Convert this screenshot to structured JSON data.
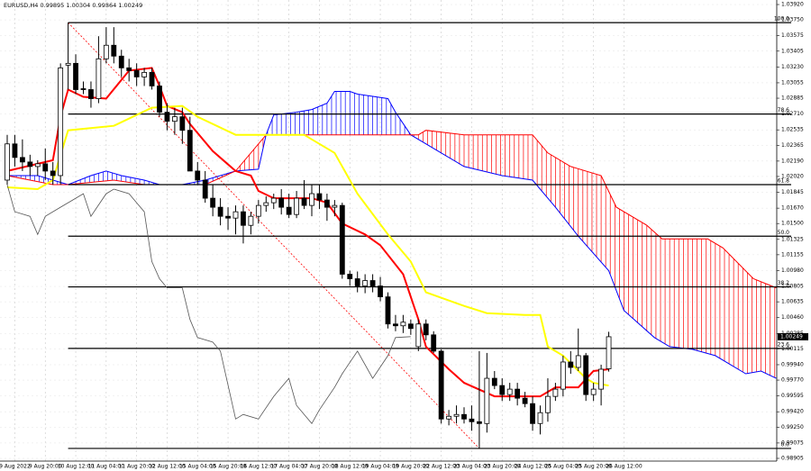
{
  "chart_data": {
    "type": "candlestick",
    "symbol": "EURUSD,H4",
    "ylim": [
      0.98875,
      1.0397
    ],
    "yticks": [
      {
        "value": 1.0392,
        "label": "1.03920"
      },
      {
        "value": 1.0375,
        "label": "1.03750"
      },
      1.03575,
      1.03405,
      {
        "value": 1.0323,
        "label": "1.03230"
      },
      1.03055,
      1.02885,
      {
        "value": 1.0271,
        "label": "1.02710"
      },
      1.02535,
      1.02365,
      {
        "value": 1.0219,
        "label": "1.02190"
      },
      {
        "value": 1.0202,
        "label": "1.02020"
      },
      1.01845,
      {
        "value": 1.0167,
        "label": "1.01670"
      },
      {
        "value": 1.015,
        "label": "1.01500"
      },
      1.01325,
      1.01155,
      {
        "value": 1.0098,
        "label": "1.00980"
      },
      1.00805,
      1.00635,
      {
        "value": 1.0046,
        "label": "1.00460"
      },
      1.00285,
      1.00115,
      {
        "value": 0.9994,
        "label": "0.99940"
      },
      {
        "value": 0.9977,
        "label": "0.99770"
      },
      0.99595,
      {
        "value": 0.9942,
        "label": "0.99420"
      },
      {
        "value": 0.9925,
        "label": "0.99250"
      },
      0.99075,
      0.98905
    ],
    "grid": true,
    "categories": [
      null,
      "9 Aug 2022",
      null,
      null,
      null,
      "9 Aug 20:00",
      null,
      null,
      null,
      "10 Aug 12:00",
      null,
      null,
      null,
      "11 Aug 04:00",
      null,
      null,
      null,
      "11 Aug 20:00",
      null,
      null,
      null,
      "12 Aug 12:00",
      null,
      null,
      null,
      "15 Aug 04:00",
      null,
      null,
      null,
      "15 Aug 20:00",
      null,
      null,
      null,
      "16 Aug 12:00",
      null,
      null,
      null,
      "17 Aug 04:00",
      null,
      null,
      null,
      "17 Aug 20:00",
      null,
      null,
      null,
      "18 Aug 12:00",
      null,
      null,
      null,
      "19 Aug 04:00",
      null,
      null,
      null,
      "19 Aug 20:00",
      null,
      null,
      null,
      "22 Aug 12:00",
      null,
      null,
      null,
      "23 Aug 04:00",
      null,
      null,
      null,
      "23 Aug 20:00",
      null,
      null,
      null,
      "24 Aug 12:00",
      null,
      null,
      null,
      "25 Aug 04:00",
      null,
      null,
      null,
      "25 Aug 20:00",
      null,
      null,
      null,
      "26 Aug 12:00"
    ],
    "open": [
      1.0198,
      1.0238,
      1.0223,
      1.0218,
      1.0213,
      1.0216,
      1.0208,
      1.0203,
      1.0325,
      1.0327,
      1.0299,
      1.0298,
      1.0288,
      1.0332,
      1.0347,
      1.0335,
      1.0322,
      1.0319,
      1.0312,
      1.0317,
      1.0302,
      1.0273,
      1.0263,
      1.0268,
      1.0253,
      1.0208,
      1.0198,
      1.0178,
      1.0168,
      1.0158,
      1.0156,
      1.0163,
      1.0148,
      1.0158,
      1.017,
      1.0173,
      1.0178,
      1.0168,
      1.016,
      1.0178,
      1.017,
      1.0183,
      1.0176,
      1.0168,
      1.017,
      1.0094,
      1.0089,
      1.0081,
      1.0087,
      1.0081,
      1.0069,
      1.0039,
      1.0037,
      1.0039,
      1.0014,
      1.0039,
      1.0027,
      1.0009,
      0.9934,
      0.9937,
      0.9939,
      0.9934,
      0.9931,
      0.9929,
      0.9979,
      0.9971,
      0.9961,
      0.9967,
      0.9957,
      0.9951,
      0.9929,
      0.9941,
      0.9959,
      0.9967,
      0.9997,
      0.9991,
      1.0004,
      0.9961,
      0.9967,
      0.99895,
      null,
      null
    ],
    "high": [
      1.0248,
      1.0248,
      1.0243,
      1.0226,
      1.022,
      1.0233,
      1.0218,
      1.0327,
      1.0372,
      1.0337,
      1.0307,
      1.0307,
      1.0357,
      1.0367,
      1.0367,
      1.0342,
      1.0332,
      1.0327,
      1.0322,
      1.0322,
      1.0307,
      1.0283,
      1.0278,
      1.0278,
      1.0268,
      1.0218,
      1.0208,
      1.0193,
      1.0178,
      1.0168,
      1.017,
      1.017,
      1.0163,
      1.0176,
      1.018,
      1.0183,
      1.0188,
      1.0183,
      1.0186,
      1.0198,
      1.0193,
      1.0193,
      1.0183,
      1.0176,
      1.0173,
      1.0098,
      1.0097,
      1.0094,
      1.0094,
      1.0091,
      1.0074,
      1.0049,
      1.0049,
      1.0044,
      1.0044,
      1.0044,
      1.0031,
      1.0011,
      0.9944,
      0.9949,
      0.9947,
      0.9949,
      1.0009,
      1.0007,
      0.9987,
      0.9979,
      0.9974,
      0.9974,
      0.9964,
      0.9959,
      0.9949,
      0.9979,
      0.9974,
      1.0004,
      1.0009,
      1.0034,
      1.0007,
      0.9974,
      0.9994,
      1.00304,
      null,
      null
    ],
    "low": [
      1.0193,
      1.0213,
      1.0208,
      1.0203,
      1.0203,
      1.0198,
      1.0193,
      1.0193,
      1.0298,
      1.0293,
      1.0293,
      1.0278,
      1.0283,
      1.0327,
      1.0327,
      1.0312,
      1.0307,
      1.0302,
      1.0302,
      1.0298,
      1.0268,
      1.0253,
      1.0248,
      1.0238,
      1.0208,
      1.0193,
      1.0173,
      1.0158,
      1.0148,
      1.0143,
      1.0138,
      1.0128,
      1.0138,
      1.015,
      1.0163,
      1.0166,
      1.016,
      1.0156,
      1.0156,
      1.0166,
      1.0158,
      1.0166,
      1.0153,
      1.0158,
      1.0089,
      1.0081,
      1.0074,
      1.0073,
      1.0074,
      1.0064,
      1.0034,
      1.0031,
      1.0029,
      1.0027,
      1.0009,
      1.0021,
      1.0007,
      0.9929,
      0.9927,
      0.9929,
      0.9929,
      0.9921,
      0.9902,
      0.9919,
      0.9967,
      0.9954,
      0.9954,
      0.9949,
      0.9947,
      0.9921,
      0.9917,
      0.9931,
      0.9954,
      0.9959,
      0.9984,
      0.9987,
      0.9954,
      0.9954,
      0.9949,
      0.99864,
      null,
      null
    ],
    "close": [
      1.0238,
      1.0223,
      1.0218,
      1.0213,
      1.0216,
      1.0208,
      1.0203,
      1.0322,
      1.0327,
      1.0298,
      1.0298,
      1.0288,
      1.0332,
      1.0347,
      1.0335,
      1.0322,
      1.0319,
      1.0312,
      1.0317,
      1.0302,
      1.0273,
      1.0263,
      1.0268,
      1.0253,
      1.0208,
      1.0198,
      1.0178,
      1.0168,
      1.0158,
      1.0156,
      1.0163,
      1.0148,
      1.0158,
      1.017,
      1.0173,
      1.0178,
      1.0168,
      1.016,
      1.0178,
      1.017,
      1.0183,
      1.0176,
      1.0168,
      1.017,
      1.0094,
      1.0089,
      1.0081,
      1.0087,
      1.0081,
      1.0069,
      1.0039,
      1.0037,
      1.0041,
      1.0034,
      1.0039,
      1.0027,
      1.0009,
      0.9934,
      0.9937,
      0.9939,
      0.9934,
      0.9931,
      0.9929,
      0.9979,
      0.9971,
      0.9961,
      0.9967,
      0.9957,
      0.9951,
      0.9929,
      0.9941,
      0.9959,
      0.9967,
      0.9997,
      0.9991,
      1.0004,
      0.9961,
      0.9967,
      0.9989,
      1.00249,
      null,
      null
    ],
    "bull_color": "#ffffff",
    "bear_color": "#000000",
    "lines": [
      {
        "color": "#ff0000",
        "width": 2,
        "x": [
          0,
          6,
          7,
          8,
          10,
          13,
          16,
          19,
          20,
          21,
          23,
          24,
          27,
          30,
          32,
          33,
          35,
          38,
          40,
          42,
          44,
          47,
          49,
          52,
          54,
          55,
          58,
          60,
          64,
          68,
          70,
          72,
          75,
          77,
          79
        ],
        "values": [
          1.0208,
          1.022,
          1.0268,
          1.0298,
          1.029,
          1.0288,
          1.0319,
          1.0322,
          1.0302,
          1.028,
          1.0273,
          1.026,
          1.023,
          1.0208,
          1.0203,
          1.0186,
          1.0178,
          1.0178,
          1.0178,
          1.0173,
          1.015,
          1.0138,
          1.0126,
          1.0094,
          1.0044,
          1.0014,
          0.9989,
          0.9974,
          0.9959,
          0.9959,
          0.9959,
          0.9969,
          0.9969,
          0.9987,
          0.9989
        ]
      },
      {
        "color": "#ffff00",
        "width": 2,
        "x": [
          0,
          4,
          6,
          8,
          14,
          19,
          23,
          25,
          30,
          34,
          39,
          43,
          46,
          50,
          53,
          55,
          60,
          63,
          68,
          70,
          71,
          73,
          76,
          77,
          79
        ],
        "values": [
          1.019,
          1.0188,
          1.0198,
          1.0253,
          1.0258,
          1.0278,
          1.028,
          1.0268,
          1.0248,
          1.0248,
          1.0248,
          1.0228,
          1.0183,
          1.0138,
          1.0108,
          1.0074,
          1.0059,
          1.0051,
          1.0049,
          1.0049,
          1.0014,
          1.0004,
          0.9979,
          0.9974,
          0.9971
        ]
      },
      {
        "color": "#555555",
        "width": 0.8,
        "x": [
          0,
          1,
          3,
          4,
          5,
          7,
          8,
          10,
          11,
          13,
          14,
          16,
          17,
          18,
          19,
          20,
          21,
          23,
          24,
          25,
          27,
          28,
          30,
          31,
          33,
          35,
          37,
          38,
          40,
          41,
          43,
          44,
          46,
          48,
          50,
          51,
          53
        ],
        "values": [
          1.0193,
          1.0163,
          1.0158,
          1.0138,
          1.0158,
          1.0168,
          1.0173,
          1.0183,
          1.0158,
          1.0183,
          1.0188,
          1.0183,
          1.0173,
          1.0163,
          1.0108,
          1.0089,
          1.0079,
          1.0079,
          1.0044,
          1.0024,
          1.0019,
          1.0009,
          0.9934,
          0.9939,
          0.9934,
          0.9959,
          0.9979,
          0.9949,
          0.9929,
          0.9944,
          0.9969,
          0.9984,
          1.0009,
          0.9979,
          1.0004,
          1.0024,
          1.0025
        ]
      }
    ],
    "cloud": {
      "span_a": {
        "color": "#0000ff",
        "x": [
          0,
          4,
          6,
          8,
          11,
          13,
          15,
          18,
          20,
          23,
          26,
          30,
          33,
          34,
          35,
          38,
          40,
          42,
          43,
          45,
          46,
          50,
          51,
          53,
          57,
          60,
          65,
          69,
          72,
          75,
          79,
          81,
          85,
          87,
          90,
          93,
          97,
          99,
          101
        ],
        "values": [
          1.0203,
          1.0203,
          1.0198,
          1.0193,
          1.0203,
          1.0208,
          1.0203,
          1.0198,
          1.0193,
          1.0193,
          1.0198,
          1.0208,
          1.021,
          1.0248,
          1.027,
          1.0273,
          1.0276,
          1.0283,
          1.0296,
          1.0296,
          1.0293,
          1.0288,
          1.0273,
          1.0248,
          1.0228,
          1.0213,
          1.0203,
          1.0198,
          1.0168,
          1.0136,
          1.0098,
          1.0054,
          1.0024,
          1.0014,
          1.0011,
          1.0004,
          0.9984,
          0.9987,
          0.9979
        ]
      },
      "span_b": {
        "color": "#ff0000",
        "x": [
          0,
          6,
          8,
          14,
          18,
          26,
          30,
          34,
          51,
          54,
          55,
          60,
          65,
          69,
          71,
          74,
          78,
          80,
          84,
          86,
          92,
          94,
          98,
          101
        ],
        "values": [
          1.0203,
          1.0193,
          1.0193,
          1.0198,
          1.0193,
          1.0193,
          1.0208,
          1.0248,
          1.0248,
          1.0248,
          1.0253,
          1.0248,
          1.0248,
          1.0248,
          1.0228,
          1.0213,
          1.0203,
          1.0168,
          1.0148,
          1.0133,
          1.0133,
          1.0123,
          1.0089,
          1.0079
        ]
      }
    },
    "fib_levels": [
      {
        "value": 100,
        "label": "100.0",
        "price": 1.0372
      },
      {
        "value": 78.6,
        "price": 1.0271
      },
      {
        "value": 61.8,
        "price": 1.0193
      },
      {
        "value": 50,
        "label": "50.0",
        "price": 1.0136
      },
      {
        "value": 38.2,
        "price": 1.008
      },
      {
        "value": 23.6,
        "price": 1.0012
      },
      {
        "value": 0,
        "label": "0.0",
        "price": 0.99015
      }
    ],
    "fib_color": "#000000",
    "trend_color": "#ff0000"
  }
}
